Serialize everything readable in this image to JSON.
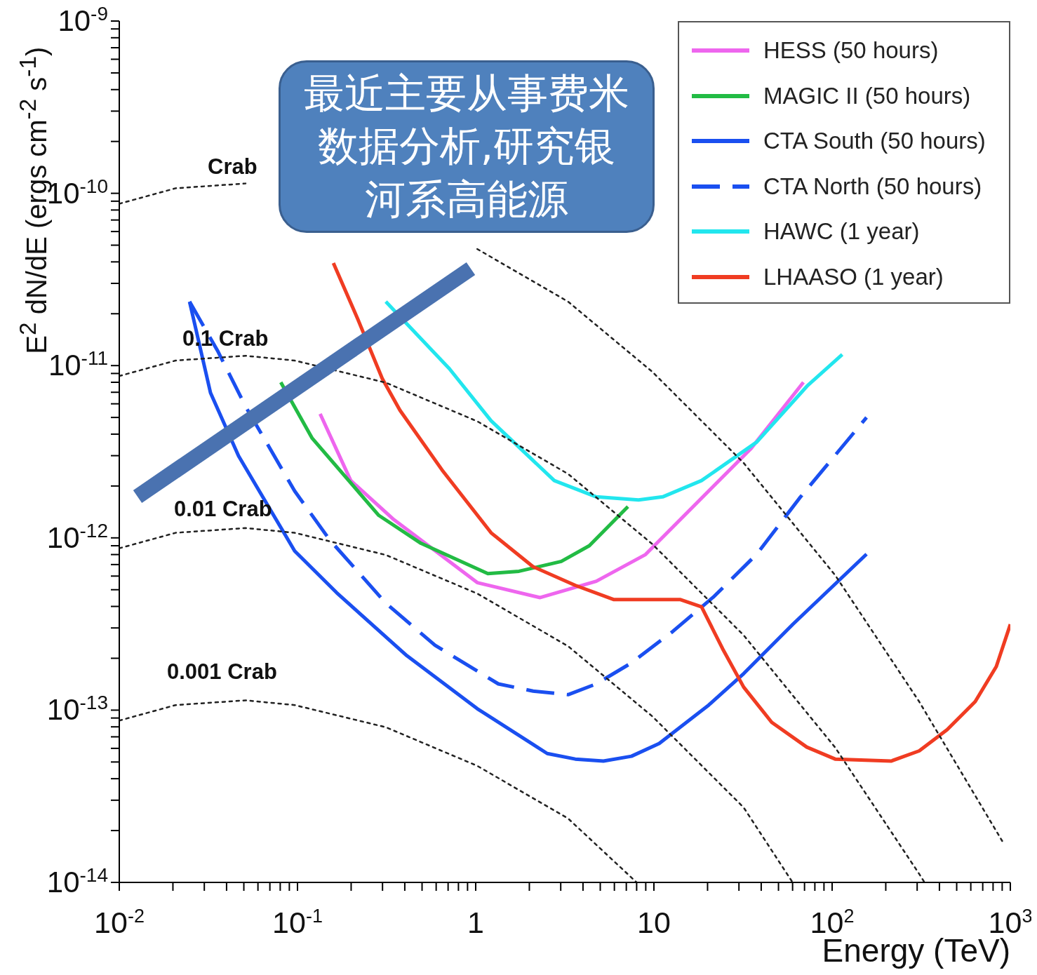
{
  "chart_data": {
    "type": "line",
    "xlabel": "Energy (TeV)",
    "ylabel": "E$^{2}$ dN/dE (ergs cm$^{-2}$ s$^{-1}$)",
    "log": "xy",
    "grid": false,
    "legend": "top right",
    "marker": "none",
    "line_style": "solid",
    "xlim": [
      0.01,
      1000
    ],
    "ylim": [
      1e-14,
      1e-09
    ],
    "xticks": [
      {
        "value": 0.01,
        "label": "10$^{-2}$"
      },
      {
        "value": 0.02,
        "label": null
      },
      {
        "value": 0.03,
        "label": null
      },
      {
        "value": 0.04,
        "label": null
      },
      {
        "value": 0.05,
        "label": null
      },
      {
        "value": 0.06,
        "label": null
      },
      {
        "value": 0.07,
        "label": null
      },
      {
        "value": 0.08,
        "label": null
      },
      {
        "value": 0.09,
        "label": null
      },
      {
        "value": 0.1,
        "label": "10$^{-1}$"
      },
      {
        "value": 0.2,
        "label": null
      },
      {
        "value": 0.3,
        "label": null
      },
      {
        "value": 0.4,
        "label": null
      },
      {
        "value": 0.5,
        "label": null
      },
      {
        "value": 0.6,
        "label": null
      },
      {
        "value": 0.7,
        "label": null
      },
      {
        "value": 0.8,
        "label": null
      },
      {
        "value": 0.9,
        "label": null
      },
      1,
      {
        "value": 2,
        "label": null
      },
      {
        "value": 3,
        "label": null
      },
      {
        "value": 4,
        "label": null
      },
      {
        "value": 5,
        "label": null
      },
      {
        "value": 6,
        "label": null
      },
      {
        "value": 7,
        "label": null
      },
      {
        "value": 8,
        "label": null
      },
      {
        "value": 9,
        "label": null
      },
      10,
      {
        "value": 20,
        "label": null
      },
      {
        "value": 30,
        "label": null
      },
      {
        "value": 40,
        "label": null
      },
      {
        "value": 50,
        "label": null
      },
      {
        "value": 60,
        "label": null
      },
      {
        "value": 70,
        "label": null
      },
      {
        "value": 80,
        "label": null
      },
      {
        "value": 90,
        "label": null
      },
      {
        "value": 100,
        "label": "10$^{2}$"
      },
      {
        "value": 200,
        "label": null
      },
      {
        "value": 300,
        "label": null
      },
      {
        "value": 400,
        "label": null
      },
      {
        "value": 500,
        "label": null
      },
      {
        "value": 600,
        "label": null
      },
      {
        "value": 700,
        "label": null
      },
      {
        "value": 800,
        "label": null
      },
      {
        "value": 900,
        "label": null
      },
      {
        "value": 1000,
        "label": "10$^{3}$"
      }
    ],
    "yticks": [
      {
        "value": 1e-14,
        "label": "10$^{-14}$"
      },
      {
        "value": 2e-14,
        "label": null
      },
      {
        "value": 3e-14,
        "label": null
      },
      {
        "value": 4e-14,
        "label": null
      },
      {
        "value": 5e-14,
        "label": null
      },
      {
        "value": 6e-14,
        "label": null
      },
      {
        "value": 7e-14,
        "label": null
      },
      {
        "value": 8e-14,
        "label": null
      },
      {
        "value": 9e-14,
        "label": null
      },
      {
        "value": 1e-13,
        "label": "10$^{-13}$"
      },
      {
        "value": 2e-13,
        "label": null
      },
      {
        "value": 3e-13,
        "label": null
      },
      {
        "value": 4e-13,
        "label": null
      },
      {
        "value": 5e-13,
        "label": null
      },
      {
        "value": 6e-13,
        "label": null
      },
      {
        "value": 7e-13,
        "label": null
      },
      {
        "value": 8e-13,
        "label": null
      },
      {
        "value": 9e-13,
        "label": null
      },
      {
        "value": 1e-12,
        "label": "10$^{-12}$"
      },
      {
        "value": 2e-12,
        "label": null
      },
      {
        "value": 3e-12,
        "label": null
      },
      {
        "value": 4e-12,
        "label": null
      },
      {
        "value": 5e-12,
        "label": null
      },
      {
        "value": 6e-12,
        "label": null
      },
      {
        "value": 7e-12,
        "label": null
      },
      {
        "value": 8e-12,
        "label": null
      },
      {
        "value": 9e-12,
        "label": null
      },
      {
        "value": 1e-11,
        "label": "10$^{-11}$"
      },
      {
        "value": 2e-11,
        "label": null
      },
      {
        "value": 3e-11,
        "label": null
      },
      {
        "value": 4e-11,
        "label": null
      },
      {
        "value": 5e-11,
        "label": null
      },
      {
        "value": 6e-11,
        "label": null
      },
      {
        "value": 7e-11,
        "label": null
      },
      {
        "value": 8e-11,
        "label": null
      },
      {
        "value": 9e-11,
        "label": null
      },
      {
        "value": 1e-10,
        "label": "10$^{-10}$"
      },
      {
        "value": 2e-10,
        "label": null
      },
      {
        "value": 3e-10,
        "label": null
      },
      {
        "value": 4e-10,
        "label": null
      },
      {
        "value": 5e-10,
        "label": null
      },
      {
        "value": 6e-10,
        "label": null
      },
      {
        "value": 7e-10,
        "label": null
      },
      {
        "value": 8e-10,
        "label": null
      },
      {
        "value": 9e-10,
        "label": null
      },
      {
        "value": 1e-09,
        "label": "10$^{-9}$"
      }
    ],
    "series": [
      {
        "name": "HESS (50 hours)",
        "color": "#ee66ee",
        "x": [
          0.134,
          0.199,
          0.343,
          1.02,
          2.3,
          4.75,
          8.97,
          18.5,
          34.9,
          69
        ],
        "values": [
          5.25e-12,
          2.15e-12,
          1.29e-12,
          5.5e-13,
          4.5e-13,
          5.6e-13,
          8e-13,
          1.7e-12,
          3.28e-12,
          8e-12
        ]
      },
      {
        "name": "MAGIC II (50 hours)",
        "color": "#22bb44",
        "x": [
          0.0806,
          0.121,
          0.286,
          0.493,
          1.17,
          1.75,
          3.02,
          4.34,
          7.15
        ],
        "values": [
          8e-12,
          3.78e-12,
          1.35e-12,
          9.3e-13,
          6.2e-13,
          6.4e-13,
          7.3e-13,
          9e-13,
          1.52e-12
        ]
      },
      {
        "name": "CTA South (50 hours)",
        "color": "#1a4ff0",
        "x": [
          0.0248,
          0.0325,
          0.0467,
          0.0964,
          0.166,
          0.411,
          1.02,
          2.52,
          3.62,
          5.21,
          7.48,
          10.7,
          20.3,
          31.9,
          60.2,
          156
        ],
        "values": [
          2.35e-11,
          6.95e-12,
          2.99e-12,
          8.4e-13,
          4.8e-13,
          2.07e-13,
          1.02e-13,
          5.6e-14,
          5.2e-14,
          5.06e-14,
          5.4e-14,
          6.4e-14,
          1.07e-13,
          1.63e-13,
          3.15e-13,
          8.05e-13
        ]
      },
      {
        "name": "CTA North (50 hours)",
        "color": "#1a4ff0",
        "line_style": "dashed",
        "x": [
          0.0248,
          0.0356,
          0.0512,
          0.0964,
          0.152,
          0.313,
          0.591,
          1.34,
          2.1,
          3.3,
          4.75,
          7.48,
          12.8,
          21.8,
          37.8,
          65.6,
          156
        ],
        "values": [
          2.35e-11,
          1.22e-11,
          5.77e-12,
          1.87e-12,
          9.7e-13,
          4.18e-13,
          2.38e-13,
          1.42e-13,
          1.29e-13,
          1.23e-13,
          1.42e-13,
          1.88e-13,
          2.87e-13,
          4.58e-13,
          8.05e-13,
          1.7e-12,
          5e-12
        ]
      },
      {
        "name": "HAWC (1 year)",
        "color": "#22e6ee",
        "x": [
          0.313,
          0.711,
          1.22,
          2.76,
          4.75,
          8.2,
          11.2,
          18.5,
          37.8,
          72.3,
          114
        ],
        "values": [
          2.35e-11,
          9.6e-12,
          4.78e-12,
          2.15e-12,
          1.73e-12,
          1.66e-12,
          1.73e-12,
          2.15e-12,
          3.6e-12,
          7.6e-12,
          1.16e-11
        ]
      },
      {
        "name": "LHAASO (1 year)",
        "color": "#f03c22",
        "x": [
          0.159,
          0.218,
          0.299,
          0.376,
          0.647,
          1.22,
          2.1,
          3.62,
          5.97,
          14.1,
          18.5,
          24.3,
          31.9,
          45.8,
          72.1,
          104,
          214,
          308,
          442,
          635,
          834,
          1000
        ],
        "values": [
          3.94e-11,
          1.86e-11,
          8.4e-12,
          5.5e-12,
          2.48e-12,
          1.07e-12,
          6.8e-13,
          5.3e-13,
          4.38e-13,
          4.38e-13,
          3.98e-13,
          2.27e-13,
          1.36e-13,
          8.5e-14,
          6.1e-14,
          5.2e-14,
          5.06e-14,
          5.8e-14,
          7.7e-14,
          1.12e-13,
          1.79e-13,
          3.15e-13
        ]
      },
      {
        "color": "#222222",
        "line_style": "dotted",
        "x": [
          0.01,
          0.0207,
          0.0511,
          0.0964,
          0.313,
          1.02,
          3.3,
          9.8,
          31.9,
          104,
          308,
          906
        ],
        "values": [
          8.7e-11,
          1.07e-10,
          1.14e-10,
          null,
          null,
          4.75e-11,
          2.35e-11,
          9.2e-12,
          2.72e-12,
          6.07e-13,
          1.12e-13,
          1.72e-14
        ]
      },
      {
        "color": "#222222",
        "line_style": "dotted",
        "x": [
          0.01,
          0.0207,
          0.0511,
          0.0964,
          0.313,
          1.02,
          3.3,
          9.8,
          31.9,
          104,
          308,
          330
        ],
        "values": [
          8.7e-12,
          1.07e-11,
          1.14e-11,
          1.07e-11,
          7.96e-12,
          4.75e-12,
          2.35e-12,
          9.2e-13,
          2.72e-13,
          6.07e-14,
          1.12e-14,
          1e-14
        ]
      },
      {
        "color": "#222222",
        "line_style": "dotted",
        "x": [
          0.01,
          0.0207,
          0.0511,
          0.0964,
          0.313,
          1.02,
          3.3,
          9.8,
          31.9,
          60
        ],
        "values": [
          8.7e-13,
          1.07e-12,
          1.14e-12,
          1.07e-12,
          7.96e-13,
          4.75e-13,
          2.35e-13,
          9.2e-14,
          2.72e-14,
          1e-14
        ]
      },
      {
        "color": "#222222",
        "line_style": "dotted",
        "x": [
          0.01,
          0.0207,
          0.0511,
          0.0964,
          0.313,
          1.02,
          3.3,
          8
        ],
        "values": [
          8.7e-14,
          1.07e-13,
          1.14e-13,
          1.07e-13,
          7.96e-14,
          4.75e-14,
          2.35e-14,
          1e-14
        ]
      }
    ],
    "annotations": [
      "Crab",
      "0.1 Crab",
      "0.01 Crab",
      "0.001 Crab",
      "最近主要从事费米数据分析,研究银河系高能源"
    ]
  }
}
